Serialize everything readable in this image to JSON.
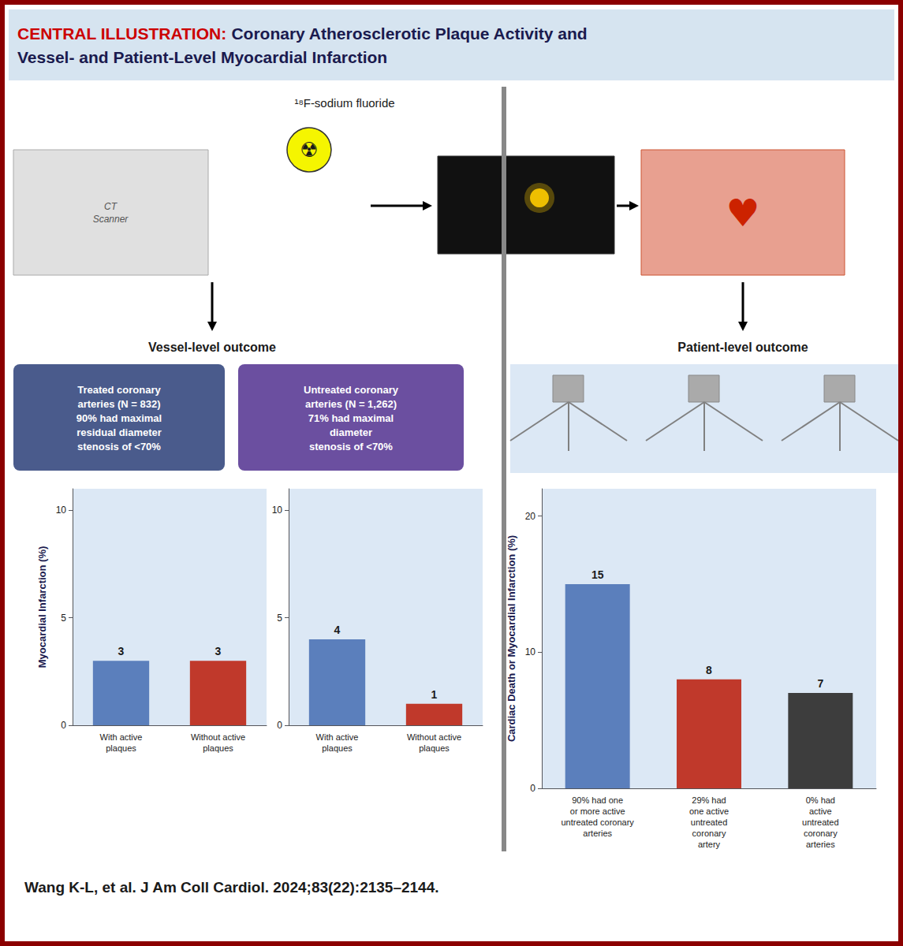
{
  "title": "CENTRAL ILLUSTRATION:",
  "subtitle": "Coronary Atherosclerotic Plaque Activity and\nVessel- and Patient-Level Myocardial Infarction",
  "annotations": [
    "¹⁸F-sodium fluoride",
    "CT\nScanner",
    "☢",
    "♥",
    "Vessel-level outcome",
    "Patient-level outcome",
    "Treated coronary\narteries (N = 832)\n90% had maximal\nresidual diameter\nstenosis of <70%",
    "Untreated coronary\narteries (N = 1,262)\n71% had maximal\ndiameter\nstenosis of <70%",
    "Wang K-L, et al. J Am Coll Cardiol. 2024;83(22):2135–2144."
  ],
  "chart_data": [
    {
      "type": "bar",
      "ylabel": "Myocardial Infarction (%)",
      "categories": [
        "With active\nplaques",
        "Without active\nplaques"
      ],
      "values": [
        3,
        3
      ],
      "colors": [
        "#5b7fbc",
        "#c0392b"
      ],
      "ylim": [
        0,
        11
      ],
      "yticks": [
        0,
        5,
        10
      ],
      "grid": false,
      "data_labels": true
    },
    {
      "type": "bar",
      "categories": [
        "With active\nplaques",
        "Without active\nplaques"
      ],
      "values": [
        4,
        1
      ],
      "colors": [
        "#5b7fbc",
        "#c0392b"
      ],
      "ylim": [
        0,
        11
      ],
      "yticks": [
        0,
        5,
        10
      ],
      "grid": false,
      "data_labels": true
    },
    {
      "type": "bar",
      "ylabel": "Cardiac Death or Myocardial Infarction (%)",
      "categories": [
        "90% had one\nor more active\nuntreated coronary\narteries",
        "29% had\none active\nuntreated\ncoronary\nartery",
        "0% had\nactive\nuntreated\ncoronary\narteries"
      ],
      "values": [
        15,
        8,
        7
      ],
      "colors": [
        "#5b7fbc",
        "#c0392b",
        "#3d3d3d"
      ],
      "ylim": [
        0,
        22
      ],
      "yticks": [
        0,
        10,
        20
      ],
      "grid": false,
      "data_labels": true
    }
  ]
}
